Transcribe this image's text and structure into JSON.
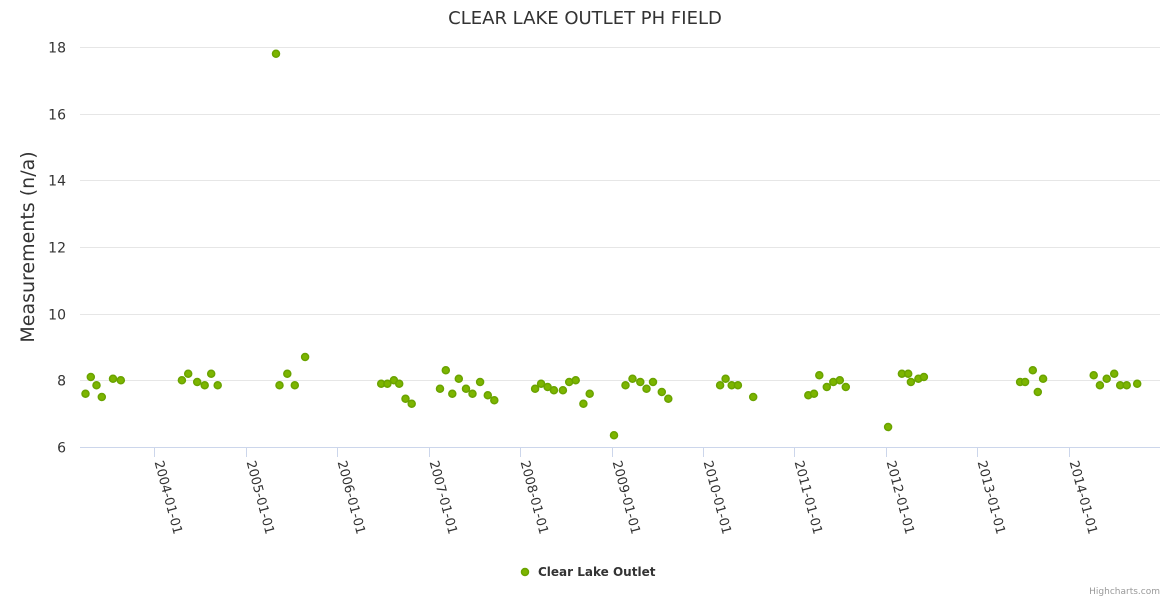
{
  "chart_data": {
    "type": "scatter",
    "title": "CLEAR LAKE OUTLET PH FIELD",
    "ylabel": "Measurements (n/a)",
    "xlabel": "",
    "ylim": [
      6,
      18
    ],
    "yticks": [
      6,
      8,
      10,
      12,
      14,
      16,
      18
    ],
    "xlim": [
      "2003-03-10",
      "2014-12-31"
    ],
    "xticks": [
      "2004-01-01",
      "2005-01-01",
      "2006-01-01",
      "2007-01-01",
      "2008-01-01",
      "2009-01-01",
      "2010-01-01",
      "2011-01-01",
      "2012-01-01",
      "2013-01-01",
      "2014-01-01"
    ],
    "legend_position": "bottom-center",
    "series": [
      {
        "name": "Clear Lake Outlet",
        "color": "#6aa300",
        "fill": "#7cb500",
        "points": [
          [
            "2003-04-01",
            7.6
          ],
          [
            "2003-04-22",
            8.1
          ],
          [
            "2003-05-15",
            7.85
          ],
          [
            "2003-06-05",
            7.5
          ],
          [
            "2003-07-20",
            8.05
          ],
          [
            "2003-08-20",
            8.0
          ],
          [
            "2004-04-20",
            8.0
          ],
          [
            "2004-05-15",
            8.2
          ],
          [
            "2004-06-20",
            7.95
          ],
          [
            "2004-07-20",
            7.85
          ],
          [
            "2004-08-15",
            8.2
          ],
          [
            "2004-09-10",
            7.85
          ],
          [
            "2005-05-01",
            17.8
          ],
          [
            "2005-05-15",
            7.85
          ],
          [
            "2005-06-15",
            8.2
          ],
          [
            "2005-07-15",
            7.85
          ],
          [
            "2005-08-25",
            8.7
          ],
          [
            "2006-06-25",
            7.9
          ],
          [
            "2006-07-20",
            7.9
          ],
          [
            "2006-08-15",
            8.0
          ],
          [
            "2006-09-05",
            7.9
          ],
          [
            "2006-09-30",
            7.45
          ],
          [
            "2006-10-25",
            7.3
          ],
          [
            "2007-02-15",
            7.75
          ],
          [
            "2007-03-10",
            8.3
          ],
          [
            "2007-04-05",
            7.6
          ],
          [
            "2007-05-01",
            8.05
          ],
          [
            "2007-05-30",
            7.75
          ],
          [
            "2007-06-25",
            7.6
          ],
          [
            "2007-07-25",
            7.95
          ],
          [
            "2007-08-25",
            7.55
          ],
          [
            "2007-09-20",
            7.4
          ],
          [
            "2008-03-01",
            7.75
          ],
          [
            "2008-03-25",
            7.9
          ],
          [
            "2008-04-20",
            7.8
          ],
          [
            "2008-05-15",
            7.7
          ],
          [
            "2008-06-20",
            7.7
          ],
          [
            "2008-07-15",
            7.95
          ],
          [
            "2008-08-10",
            8.0
          ],
          [
            "2008-09-10",
            7.3
          ],
          [
            "2008-10-05",
            7.6
          ],
          [
            "2009-01-10",
            6.35
          ],
          [
            "2009-02-25",
            7.85
          ],
          [
            "2009-03-25",
            8.05
          ],
          [
            "2009-04-25",
            7.95
          ],
          [
            "2009-05-20",
            7.75
          ],
          [
            "2009-06-15",
            7.95
          ],
          [
            "2009-07-20",
            7.65
          ],
          [
            "2009-08-15",
            7.45
          ],
          [
            "2010-03-10",
            7.85
          ],
          [
            "2010-04-01",
            8.05
          ],
          [
            "2010-04-25",
            7.85
          ],
          [
            "2010-05-20",
            7.85
          ],
          [
            "2010-07-20",
            7.5
          ],
          [
            "2011-02-25",
            7.55
          ],
          [
            "2011-03-20",
            7.6
          ],
          [
            "2011-04-10",
            8.15
          ],
          [
            "2011-05-10",
            7.8
          ],
          [
            "2011-06-05",
            7.95
          ],
          [
            "2011-07-01",
            8.0
          ],
          [
            "2011-07-25",
            7.8
          ],
          [
            "2012-01-10",
            6.6
          ],
          [
            "2012-03-05",
            8.2
          ],
          [
            "2012-03-30",
            8.2
          ],
          [
            "2012-04-10",
            7.95
          ],
          [
            "2012-05-10",
            8.05
          ],
          [
            "2012-06-01",
            8.1
          ],
          [
            "2013-06-20",
            7.95
          ],
          [
            "2013-07-10",
            7.95
          ],
          [
            "2013-08-10",
            8.3
          ],
          [
            "2013-08-30",
            7.65
          ],
          [
            "2013-09-20",
            8.05
          ],
          [
            "2014-04-10",
            8.15
          ],
          [
            "2014-05-05",
            7.85
          ],
          [
            "2014-06-01",
            8.05
          ],
          [
            "2014-07-01",
            8.2
          ],
          [
            "2014-07-25",
            7.85
          ],
          [
            "2014-08-20",
            7.85
          ],
          [
            "2014-10-01",
            7.9
          ]
        ]
      }
    ]
  },
  "credits": "Highcharts.com"
}
